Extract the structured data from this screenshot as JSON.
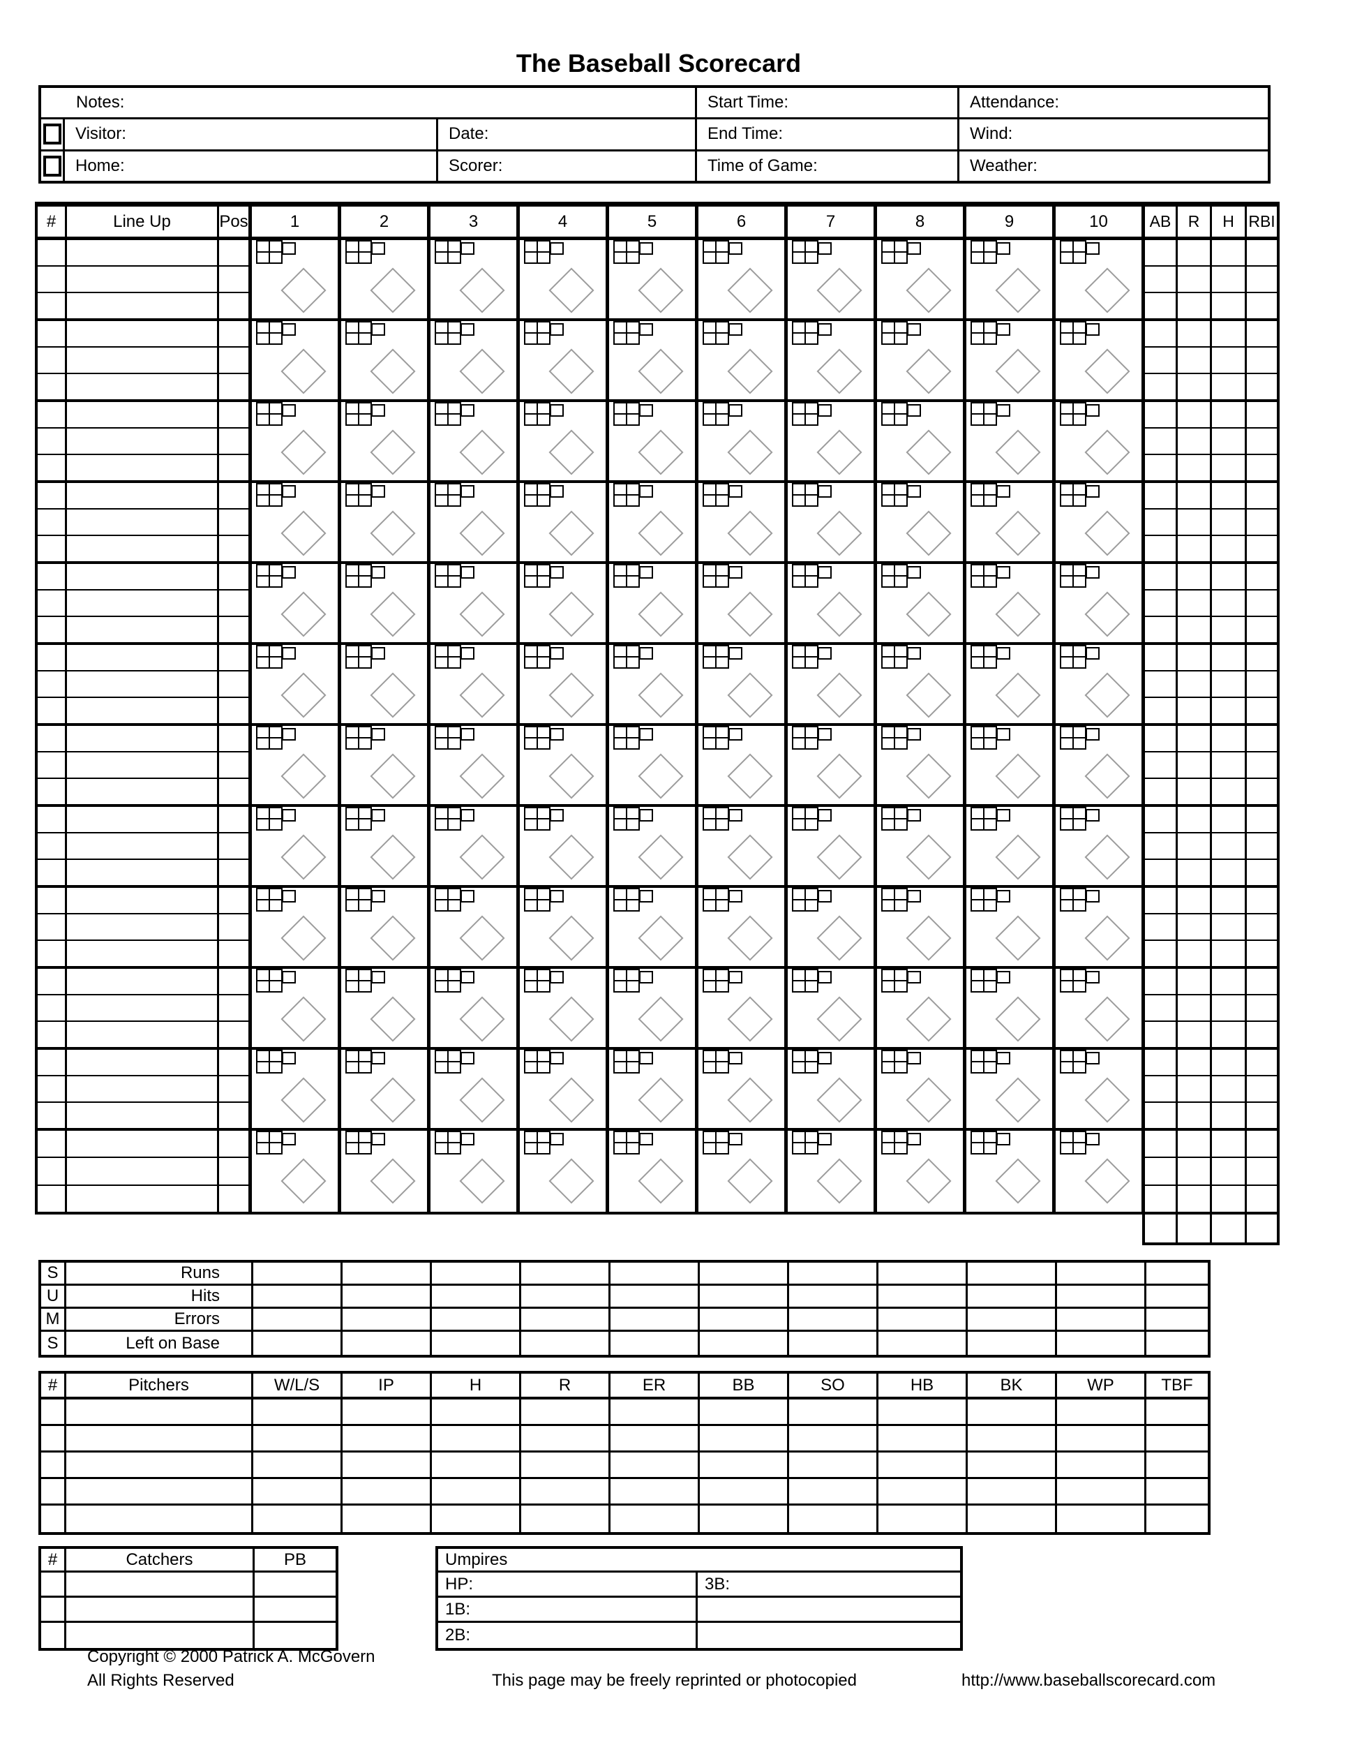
{
  "title": "The Baseball Scorecard",
  "info": {
    "notes_label": "Notes:",
    "visitor_label": "Visitor:",
    "home_label": "Home:",
    "date_label": "Date:",
    "scorer_label": "Scorer:",
    "start_time_label": "Start Time:",
    "end_time_label": "End Time:",
    "time_of_game_label": "Time of Game:",
    "attendance_label": "Attendance:",
    "wind_label": "Wind:",
    "weather_label": "Weather:"
  },
  "grid": {
    "col_num": "#",
    "col_lineup": "Line Up",
    "col_pos": "Pos",
    "innings": [
      "1",
      "2",
      "3",
      "4",
      "5",
      "6",
      "7",
      "8",
      "9",
      "10"
    ],
    "stat_cols": [
      "AB",
      "R",
      "H",
      "RBI"
    ],
    "batter_rows": 12,
    "sub_rows_per_batter": 3,
    "pitch_boxes_top_row": 3,
    "pitch_boxes_bottom_row": 2
  },
  "sums": {
    "row_letters": [
      "S",
      "U",
      "M",
      "S"
    ],
    "row_labels": [
      "Runs",
      "Hits",
      "Errors",
      "Left on Base"
    ],
    "data_columns": 11
  },
  "pitchers": {
    "columns": [
      "#",
      "Pitchers",
      "W/L/S",
      "IP",
      "H",
      "R",
      "ER",
      "BB",
      "SO",
      "HB",
      "BK",
      "WP",
      "TBF"
    ],
    "data_rows": 5
  },
  "catchers": {
    "columns": [
      "#",
      "Catchers",
      "PB"
    ],
    "data_rows": 3
  },
  "umpires": {
    "title": "Umpires",
    "hp_label": "HP:",
    "first_base_label": "1B:",
    "second_base_label": "2B:",
    "third_base_label": "3B:"
  },
  "footer": {
    "copyright": "Copyright © 2000 Patrick A. McGovern",
    "rights": "All Rights Reserved",
    "reprint": "This page may be freely reprinted or photocopied",
    "url": "http://www.baseballscorecard.com"
  },
  "colors": {
    "line": "#000000",
    "diamond": "#9c9c9c",
    "background": "#ffffff"
  }
}
